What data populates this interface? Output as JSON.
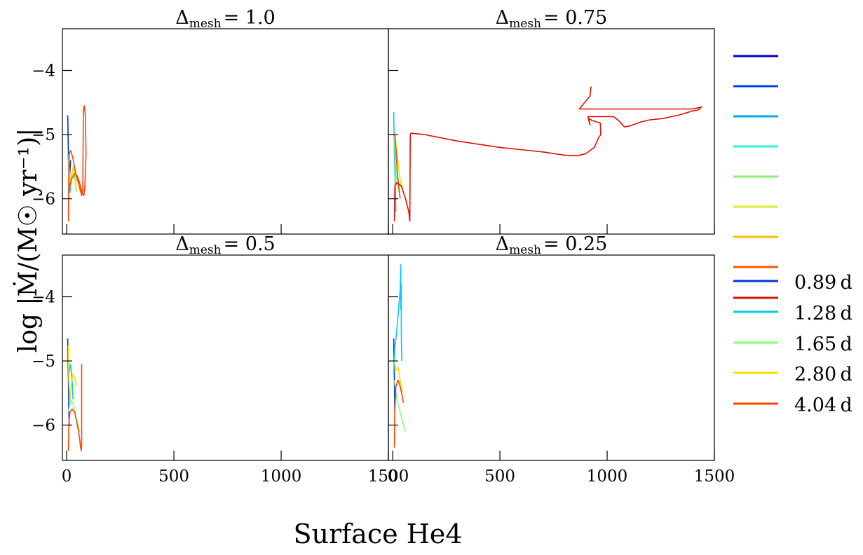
{
  "chart_data": {
    "type": "line",
    "xlabel": "Surface He4",
    "ylabel": "log |Ṁ/(M☉ yr⁻¹)|",
    "xlim": [
      -20,
      1500
    ],
    "ylim": [
      -6.55,
      -3.35
    ],
    "xticks": [
      "0",
      "500",
      "1000",
      "1500"
    ],
    "xtick_values": [
      0,
      500,
      1000,
      1500
    ],
    "yticks": [
      "−4",
      "−5",
      "−6"
    ],
    "ytick_values": [
      -4,
      -5,
      -6
    ],
    "grid": false,
    "legend_position": "right",
    "legend_entries": [
      {
        "label": "",
        "color": "#0000cc"
      },
      {
        "label": "",
        "color": "#0044ee"
      },
      {
        "label": "",
        "color": "#00aaee"
      },
      {
        "label": "",
        "color": "#33eedd"
      },
      {
        "label": "",
        "color": "#88ee77"
      },
      {
        "label": "",
        "color": "#ddee33"
      },
      {
        "label": "",
        "color": "#ffbb00"
      },
      {
        "label": "",
        "color": "#ff5500"
      },
      {
        "label": "0.89",
        "unit": "d",
        "color": "#0033dd"
      },
      {
        "label": "",
        "color": "#dd1100"
      },
      {
        "label": "1.28",
        "unit": "d",
        "color": "#00ccee"
      },
      {
        "label": "1.65",
        "unit": "d",
        "color": "#88ff77"
      },
      {
        "label": "2.80",
        "unit": "d",
        "color": "#ffdd00"
      },
      {
        "label": "4.04",
        "unit": "d",
        "color": "#ff4400"
      }
    ],
    "panels": [
      {
        "title_symbol": "Δ",
        "title_sub": "mesh",
        "title_value": "= 1.0",
        "series": [
          {
            "color": "#0033dd",
            "x": [
              5,
              8,
              12,
              15,
              18
            ],
            "y": [
              -4.7,
              -5.3,
              -5.9,
              -5.6,
              -5.4
            ]
          },
          {
            "color": "#00ccee",
            "x": [
              6,
              15,
              25,
              35,
              40
            ],
            "y": [
              -5.3,
              -5.9,
              -5.6,
              -5.5,
              -5.7
            ]
          },
          {
            "color": "#88ff77",
            "x": [
              8,
              18,
              28,
              38,
              45
            ],
            "y": [
              -5.5,
              -5.8,
              -5.6,
              -5.7,
              -5.9
            ]
          },
          {
            "color": "#ffdd00",
            "x": [
              8,
              20,
              30,
              40,
              45
            ],
            "y": [
              -5.4,
              -5.8,
              -5.5,
              -5.6,
              -5.9
            ]
          },
          {
            "color": "#ff4400",
            "x": [
              8,
              10,
              12,
              18,
              28,
              42,
              58,
              70,
              75,
              78,
              82,
              87,
              90,
              85,
              80,
              72,
              60,
              50,
              40,
              30,
              22,
              18,
              15
            ],
            "y": [
              -6.35,
              -5.6,
              -5.3,
              -5.25,
              -5.35,
              -5.6,
              -5.8,
              -5.95,
              -5.85,
              -4.6,
              -4.55,
              -4.7,
              -5.3,
              -5.8,
              -5.95,
              -5.9,
              -5.75,
              -5.65,
              -5.6,
              -5.65,
              -5.7,
              -5.75,
              -5.8
            ]
          }
        ]
      },
      {
        "title_symbol": "Δ",
        "title_sub": "mesh",
        "title_value": "= 0.75",
        "series": [
          {
            "color": "#00ccee",
            "x": [
              5,
              8,
              12,
              15
            ],
            "y": [
              -4.65,
              -5.3,
              -5.8,
              -6.2
            ]
          },
          {
            "color": "#88ff77",
            "x": [
              8,
              14,
              22,
              30
            ],
            "y": [
              -5.0,
              -5.5,
              -5.8,
              -5.9
            ]
          },
          {
            "color": "#ffdd00",
            "x": [
              10,
              20,
              35,
              50
            ],
            "y": [
              -5.0,
              -5.3,
              -5.7,
              -5.9
            ]
          },
          {
            "color": "#ff4400",
            "x": [
              10,
              15,
              22,
              28,
              35
            ],
            "y": [
              -5.0,
              -5.2,
              -5.6,
              -5.8,
              -6.0
            ]
          },
          {
            "color": "#dd1100",
            "x": [
              8,
              10,
              20,
              40,
              60,
              75,
              80,
              82,
              85,
              90,
              150,
              300,
              500,
              700,
              800,
              860,
              900,
              940,
              960,
              970,
              968,
              930,
              915,
              920,
              910,
              1030,
              1060,
              1080,
              1100,
              1160,
              1200,
              1260,
              1300,
              1330,
              1350,
              1380,
              1400,
              1420,
              1430,
              1440,
              1400,
              870,
              920,
              925
            ],
            "y": [
              -6.35,
              -5.8,
              -5.75,
              -5.8,
              -6.0,
              -6.2,
              -6.35,
              -5.0,
              -4.98,
              -4.98,
              -5.0,
              -5.1,
              -5.2,
              -5.27,
              -5.32,
              -5.33,
              -5.3,
              -5.2,
              -5.05,
              -5.0,
              -4.82,
              -4.78,
              -4.75,
              -4.85,
              -4.72,
              -4.72,
              -4.8,
              -4.88,
              -4.87,
              -4.8,
              -4.77,
              -4.75,
              -4.72,
              -4.7,
              -4.68,
              -4.65,
              -4.63,
              -4.62,
              -4.6,
              -4.57,
              -4.6,
              -4.6,
              -4.4,
              -4.25
            ]
          }
        ]
      },
      {
        "title_symbol": "Δ",
        "title_sub": "mesh",
        "title_value": "= 0.5",
        "series": [
          {
            "color": "#0033dd",
            "x": [
              5,
              8,
              10,
              12
            ],
            "y": [
              -4.65,
              -5.3,
              -5.8,
              -6.0
            ]
          },
          {
            "color": "#00ccee",
            "x": [
              10,
              18,
              25,
              30
            ],
            "y": [
              -5.2,
              -5.05,
              -5.3,
              -5.6
            ]
          },
          {
            "color": "#88ff77",
            "x": [
              8,
              20,
              32,
              45,
              62
            ],
            "y": [
              -5.8,
              -5.6,
              -5.7,
              -5.9,
              -6.1
            ]
          },
          {
            "color": "#ffdd00",
            "x": [
              8,
              10,
              15,
              22,
              30,
              40,
              45
            ],
            "y": [
              -4.75,
              -5.3,
              -5.6,
              -5.35,
              -5.2,
              -5.3,
              -5.4
            ]
          },
          {
            "color": "#ff4400",
            "x": [
              8,
              10,
              15,
              25,
              38,
              50,
              60,
              65,
              68,
              70,
              70
            ],
            "y": [
              -6.4,
              -6.0,
              -5.8,
              -5.75,
              -5.8,
              -6.0,
              -6.2,
              -6.35,
              -6.4,
              -6.3,
              -5.05
            ]
          }
        ]
      },
      {
        "title_symbol": "Δ",
        "title_sub": "mesh",
        "title_value": "= 0.25",
        "series": [
          {
            "color": "#0033dd",
            "x": [
              5,
              8,
              10
            ],
            "y": [
              -4.65,
              -5.3,
              -5.8
            ]
          },
          {
            "color": "#00ccee",
            "x": [
              5,
              10,
              20,
              30,
              35,
              38,
              38,
              40,
              40,
              42
            ],
            "y": [
              -5.2,
              -4.8,
              -4.5,
              -4.1,
              -3.9,
              -3.5,
              -4.2,
              -3.8,
              -4.5,
              -5.0
            ]
          },
          {
            "color": "#88ff77",
            "x": [
              8,
              20,
              35,
              50,
              60
            ],
            "y": [
              -5.3,
              -5.6,
              -5.8,
              -6.0,
              -6.1
            ]
          },
          {
            "color": "#ffdd00",
            "x": [
              8,
              15,
              25,
              35,
              45
            ],
            "y": [
              -5.0,
              -5.15,
              -5.1,
              -5.3,
              -5.5
            ]
          },
          {
            "color": "#ff4400",
            "x": [
              8,
              10,
              15,
              25,
              35,
              45,
              50
            ],
            "y": [
              -6.35,
              -5.8,
              -5.4,
              -5.3,
              -5.4,
              -5.55,
              -5.65
            ]
          }
        ]
      }
    ]
  }
}
